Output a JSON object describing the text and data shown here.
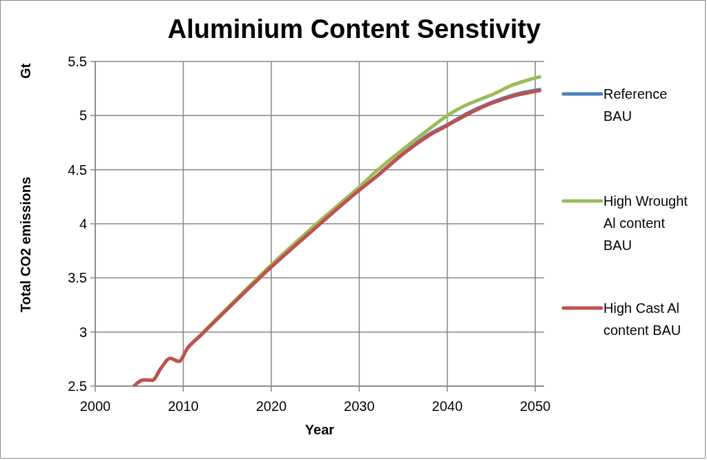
{
  "chart_data": {
    "type": "line",
    "title": "Aluminium Content Senstivity",
    "xlabel": "Year",
    "ylabel": "Total CO2 emissions",
    "annotations": [
      "Gt"
    ],
    "xlim": [
      2000,
      2051
    ],
    "xticks": [
      2000,
      2010,
      2020,
      2030,
      2040,
      2050
    ],
    "ylim": [
      2.5,
      5.5
    ],
    "yticks": [
      2.5,
      3,
      3.5,
      4,
      4.5,
      5,
      5.5
    ],
    "grid": true,
    "legend": "right",
    "marker": "none",
    "line_style": "solid",
    "series": [
      {
        "name": "Reference BAU",
        "color": "#4f81bd",
        "x": [
          2032,
          2035,
          2038,
          2040,
          2042.5,
          2045,
          2047.5,
          2050.5
        ],
        "values": [
          4.44,
          4.65,
          4.83,
          4.915,
          5.03,
          5.12,
          5.19,
          5.24
        ]
      },
      {
        "name": "High Wrought Al content BAU",
        "color": "#9bbb59",
        "x": [
          2010.5,
          2012,
          2015,
          2020,
          2025,
          2030,
          2032,
          2035,
          2038,
          2040,
          2042.5,
          2045,
          2047.5,
          2050.5
        ],
        "values": [
          2.853,
          2.975,
          3.22,
          3.62,
          3.99,
          4.34,
          4.49,
          4.69,
          4.88,
          5.0,
          5.11,
          5.19,
          5.285,
          5.357
        ]
      },
      {
        "name": "High Cast Al content BAU",
        "color": "#c0504d",
        "x": [
          2004.4,
          2005.5,
          2006.5,
          2007.5,
          2008.5,
          2009.5,
          2010.5,
          2012,
          2015,
          2020,
          2025,
          2030,
          2032,
          2035,
          2038,
          2040,
          2042.5,
          2045,
          2047.5,
          2050.5
        ],
        "values": [
          2.5,
          2.557,
          2.555,
          2.67,
          2.757,
          2.728,
          2.853,
          2.97,
          3.21,
          3.6,
          3.96,
          4.31,
          4.44,
          4.646,
          4.82,
          4.908,
          5.02,
          5.113,
          5.18,
          5.231
        ]
      }
    ]
  }
}
